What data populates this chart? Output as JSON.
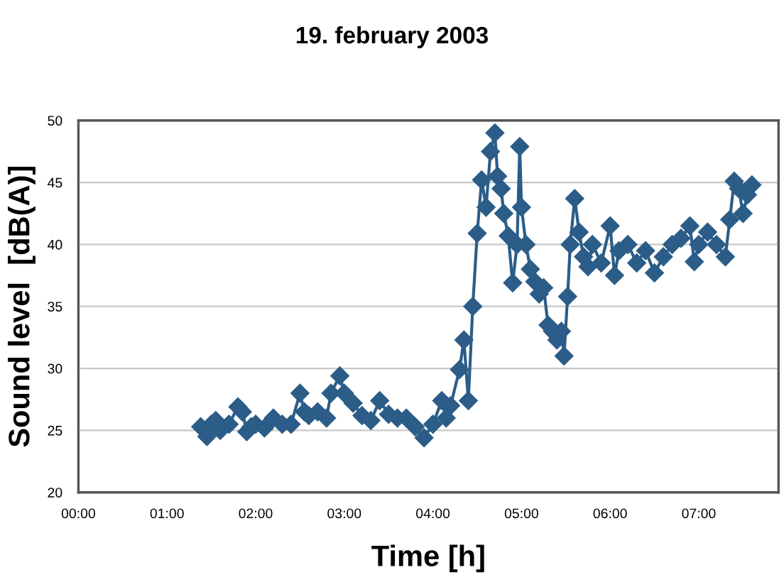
{
  "chart_data": {
    "type": "line",
    "title": "19. february 2003",
    "xlabel": "Time [h]",
    "ylabel": "Sound level  [dB(A)]",
    "x": [
      1.38,
      1.45,
      1.5,
      1.55,
      1.6,
      1.7,
      1.8,
      1.85,
      1.9,
      1.95,
      2.0,
      2.1,
      2.2,
      2.3,
      2.4,
      2.5,
      2.55,
      2.6,
      2.7,
      2.8,
      2.85,
      2.95,
      3.0,
      3.1,
      3.2,
      3.3,
      3.4,
      3.5,
      3.6,
      3.7,
      3.8,
      3.9,
      4.0,
      4.1,
      4.15,
      4.2,
      4.3,
      4.35,
      4.4,
      4.45,
      4.5,
      4.55,
      4.6,
      4.65,
      4.7,
      4.73,
      4.77,
      4.8,
      4.85,
      4.9,
      4.95,
      4.98,
      5.0,
      5.05,
      5.1,
      5.15,
      5.2,
      5.25,
      5.3,
      5.35,
      5.4,
      5.45,
      5.48,
      5.52,
      5.55,
      5.6,
      5.65,
      5.7,
      5.75,
      5.8,
      5.9,
      6.0,
      6.05,
      6.1,
      6.2,
      6.3,
      6.4,
      6.5,
      6.6,
      6.7,
      6.8,
      6.9,
      6.95,
      7.0,
      7.1,
      7.2,
      7.3,
      7.35,
      7.4,
      7.45,
      7.5,
      7.55,
      7.6
    ],
    "series": [
      {
        "color": "#2b5d88",
        "values": [
          25.3,
          24.5,
          25.5,
          25.8,
          25.0,
          25.5,
          26.9,
          26.5,
          24.9,
          25.3,
          25.5,
          25.2,
          26.0,
          25.5,
          25.5,
          28.0,
          26.5,
          26.2,
          26.5,
          26.0,
          28.0,
          29.4,
          28.0,
          27.2,
          26.2,
          25.8,
          27.4,
          26.3,
          26.0,
          26.0,
          25.3,
          24.4,
          25.5,
          27.4,
          26.0,
          27.0,
          29.9,
          32.3,
          27.4,
          35.0,
          40.9,
          45.2,
          43.0,
          47.5,
          49.0,
          45.5,
          44.5,
          42.5,
          40.7,
          36.9,
          40.0,
          47.9,
          43.0,
          40.0,
          38.0,
          37.0,
          36.0,
          36.5,
          33.5,
          33.0,
          32.3,
          33.0,
          31.0,
          35.8,
          40.0,
          43.7,
          41.0,
          39.0,
          38.2,
          40.0,
          38.5,
          41.5,
          37.5,
          39.5,
          40.0,
          38.5,
          39.5,
          37.7,
          39.0,
          40.0,
          40.5,
          41.5,
          38.6,
          40.0,
          41.0,
          40.0,
          39.0,
          42.0,
          45.1,
          44.5,
          42.5,
          44.0,
          44.8
        ]
      }
    ],
    "xlim": [
      0,
      7.9
    ],
    "ylim": [
      20,
      50
    ],
    "xticks": [
      {
        "value": 0,
        "label": "00:00"
      },
      {
        "value": 1,
        "label": "01:00"
      },
      {
        "value": 2,
        "label": "02:00"
      },
      {
        "value": 3,
        "label": "03:00"
      },
      {
        "value": 4,
        "label": "04:00"
      },
      {
        "value": 5,
        "label": "05:00"
      },
      {
        "value": 6,
        "label": "06:00"
      },
      {
        "value": 7,
        "label": "07:00"
      }
    ],
    "yticks": [
      20,
      25,
      30,
      35,
      40,
      45,
      50
    ],
    "grid": "y",
    "marker": "diamond",
    "line_style": "solid",
    "legend": false
  }
}
